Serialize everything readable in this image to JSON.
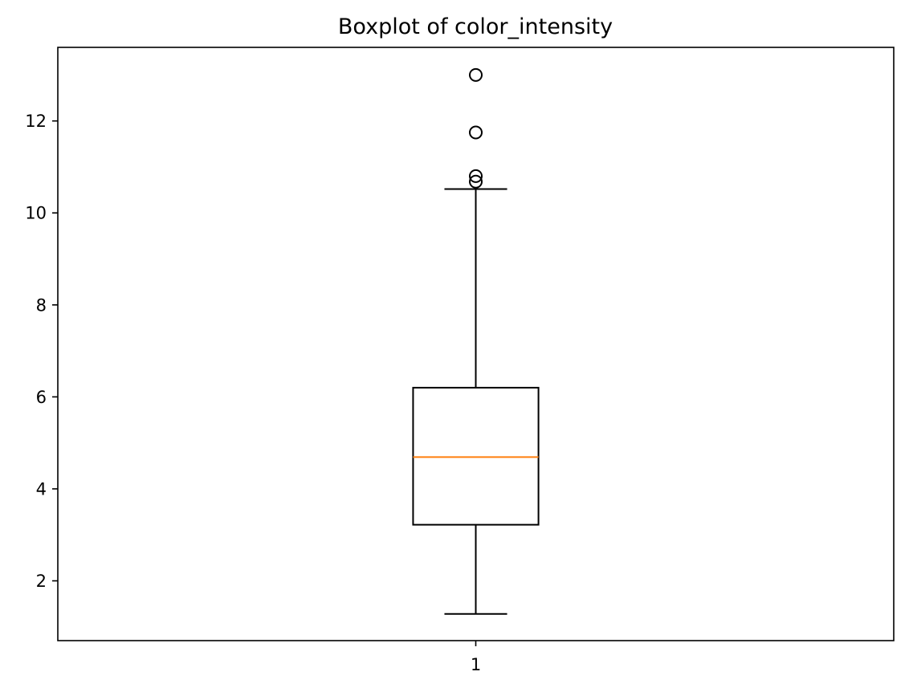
{
  "chart_data": {
    "type": "boxplot",
    "title": "Boxplot of color_intensity",
    "xlabel": "",
    "ylabel": "",
    "categories": [
      "1"
    ],
    "ylim": [
      0.7,
      13.6
    ],
    "yticks": [
      2,
      4,
      6,
      8,
      10,
      12
    ],
    "grid": false,
    "boxes": [
      {
        "category": "1",
        "whisker_low": 1.28,
        "q1": 3.22,
        "median": 4.69,
        "q3": 6.2,
        "whisker_high": 10.52,
        "outliers": [
          10.68,
          10.8,
          11.75,
          13.0
        ]
      }
    ],
    "colors": {
      "box": "#000000",
      "median": "#ff7f0e",
      "outlier": "#000000"
    }
  }
}
